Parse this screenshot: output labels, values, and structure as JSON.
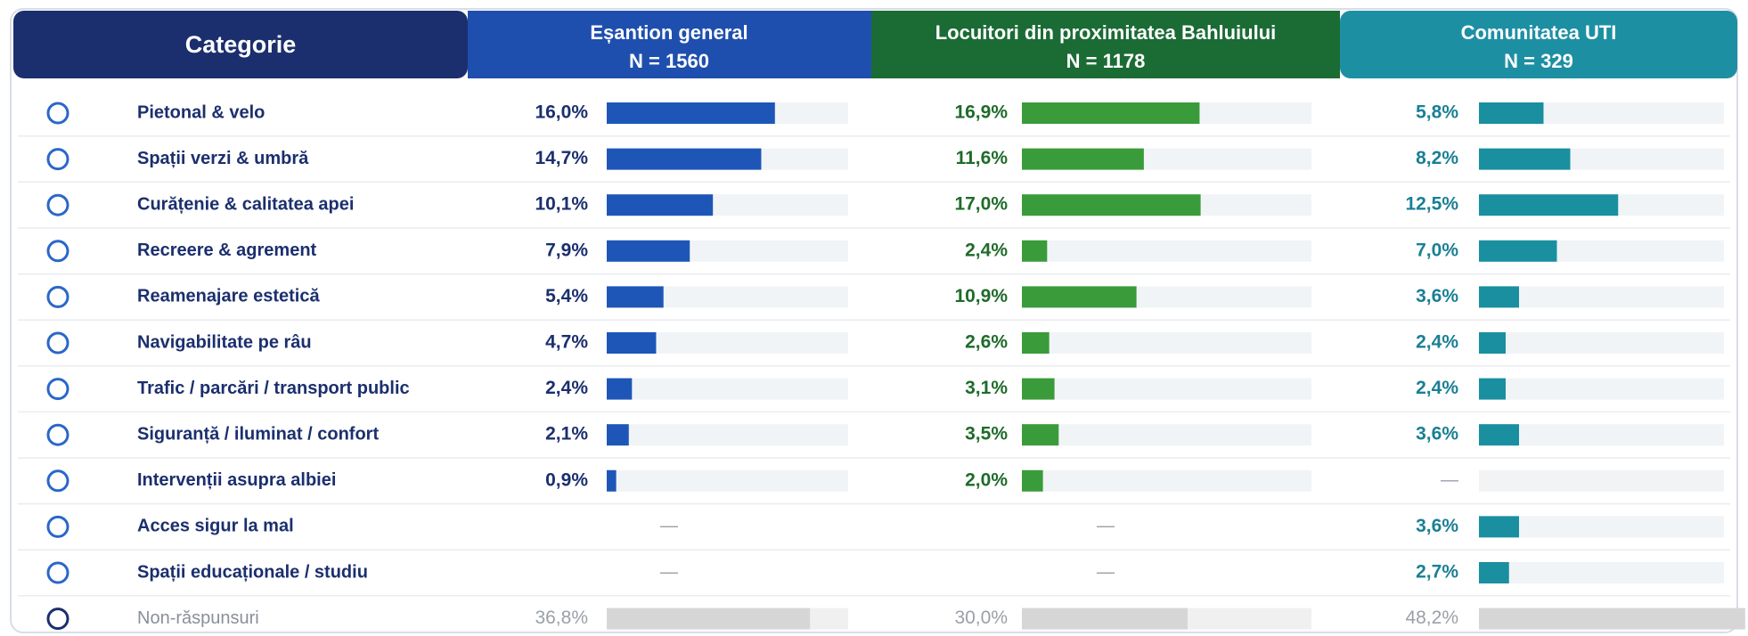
{
  "category_header": "Categorie",
  "categories": [
    "Pietonal & velo",
    "Spații verzi & umbră",
    "Curățenie & calitatea apei",
    "Recreere & agrement",
    "Reamenajare estetică",
    "Navigabilitate pe râu",
    "Trafic / parcări / transport public",
    "Siguranță / iluminat / confort",
    "Intervenții asupra albiei",
    "Acces sigur la mal",
    "Spații educaționale / studiu",
    "Non-răspunsuri"
  ],
  "groups": [
    {
      "title": "Eșantion general",
      "n_label": "N = 1560",
      "color": "#1e56b8",
      "values": [
        16.0,
        14.7,
        10.1,
        7.9,
        5.4,
        4.7,
        2.4,
        2.1,
        0.9,
        null,
        null,
        36.8
      ],
      "value_labels": [
        "16,0%",
        "14,7%",
        "10,1%",
        "7,9%",
        "5,4%",
        "4,7%",
        "2,4%",
        "2,1%",
        "0,9%",
        "—",
        "—",
        "36,8%"
      ]
    },
    {
      "title": "Locuitori din proximitatea Bahluiului",
      "n_label": "N = 1178",
      "color": "#3a9b3a",
      "values": [
        16.9,
        11.6,
        17.0,
        2.4,
        10.9,
        2.6,
        3.1,
        3.5,
        2.0,
        null,
        null,
        30.0
      ],
      "value_labels": [
        "16,9%",
        "11,6%",
        "17,0%",
        "2,4%",
        "10,9%",
        "2,6%",
        "3,1%",
        "3,5%",
        "2,0%",
        "—",
        "—",
        "30,0%"
      ]
    },
    {
      "title": "Comunitatea UTI",
      "n_label": "N = 329",
      "color": "#1a8fa0",
      "values": [
        5.8,
        8.2,
        12.5,
        7.0,
        3.6,
        2.4,
        2.4,
        3.6,
        null,
        3.6,
        2.7,
        48.2
      ],
      "value_labels": [
        "5,8%",
        "8,2%",
        "12,5%",
        "7,0%",
        "3,6%",
        "2,4%",
        "2,4%",
        "3,6%",
        "—",
        "3,6%",
        "2,7%",
        "48,2%"
      ]
    }
  ]
}
